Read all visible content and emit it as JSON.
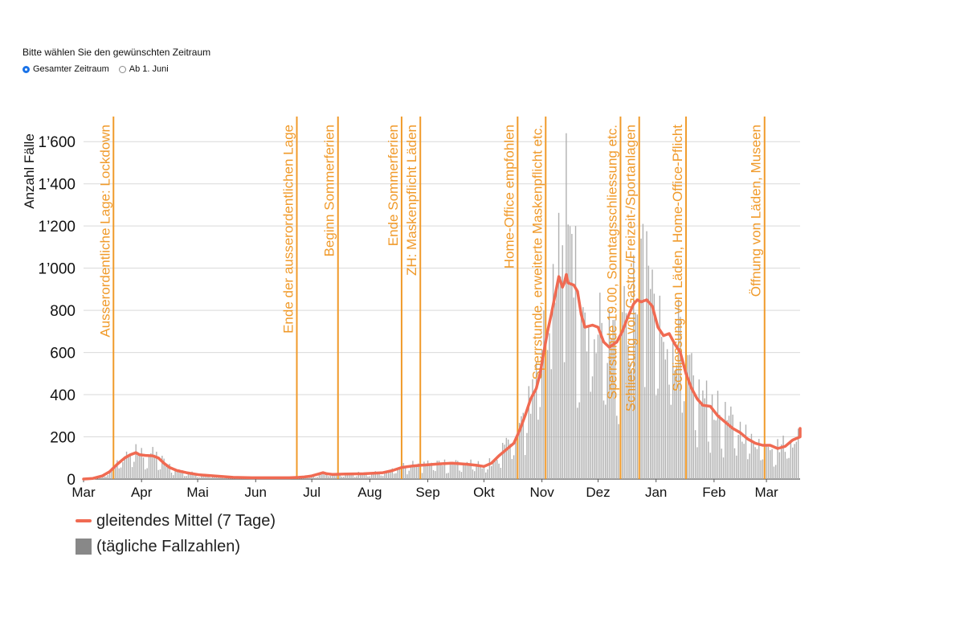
{
  "controls": {
    "prompt": "Bitte wählen Sie den gewünschten Zeitraum",
    "options": [
      {
        "label": "Gesamter Zeitraum",
        "checked": true
      },
      {
        "label": "Ab 1. Juni",
        "checked": false
      }
    ]
  },
  "legend": {
    "line_label": "gleitendes Mittel (7 Tage)",
    "bar_label": "(tägliche Fallzahlen)"
  },
  "colors": {
    "line": "#f06a52",
    "bars": "#b0b0b0",
    "events": "#f09a2a",
    "grid": "#d9d9d9",
    "radio_selected": "#1a73e8"
  },
  "chart_data": {
    "type": "bar",
    "title": "",
    "xlabel": "",
    "ylabel": "Anzahl Fälle",
    "ylim": [
      0,
      1700
    ],
    "yticks": [
      0,
      200,
      400,
      600,
      800,
      1000,
      1200,
      1400,
      1600
    ],
    "ytick_labels": [
      "0",
      "200",
      "400",
      "600",
      "800",
      "1’000",
      "1’200",
      "1’400",
      "1’600"
    ],
    "xticks": [
      {
        "label": "Mar",
        "day": 0
      },
      {
        "label": "Apr",
        "day": 31
      },
      {
        "label": "Mai",
        "day": 61
      },
      {
        "label": "Jun",
        "day": 92
      },
      {
        "label": "Jul",
        "day": 122
      },
      {
        "label": "Aug",
        "day": 153
      },
      {
        "label": "Sep",
        "day": 184
      },
      {
        "label": "Okt",
        "day": 214
      },
      {
        "label": "Nov",
        "day": 245
      },
      {
        "label": "Dez",
        "day": 275
      },
      {
        "label": "Jan",
        "day": 306
      },
      {
        "label": "Feb",
        "day": 337
      },
      {
        "label": "Mar",
        "day": 365
      }
    ],
    "x_days": 383,
    "grid": true,
    "legend_position": "bottom-left",
    "moving_average_points": [
      [
        0,
        0
      ],
      [
        5,
        3
      ],
      [
        10,
        15
      ],
      [
        14,
        35
      ],
      [
        18,
        70
      ],
      [
        22,
        100
      ],
      [
        25,
        115
      ],
      [
        28,
        125
      ],
      [
        30,
        115
      ],
      [
        33,
        112
      ],
      [
        37,
        110
      ],
      [
        40,
        100
      ],
      [
        43,
        75
      ],
      [
        46,
        55
      ],
      [
        50,
        40
      ],
      [
        55,
        30
      ],
      [
        62,
        20
      ],
      [
        70,
        15
      ],
      [
        80,
        8
      ],
      [
        90,
        6
      ],
      [
        100,
        6
      ],
      [
        110,
        6
      ],
      [
        115,
        8
      ],
      [
        118,
        10
      ],
      [
        122,
        15
      ],
      [
        126,
        25
      ],
      [
        128,
        30
      ],
      [
        130,
        25
      ],
      [
        133,
        22
      ],
      [
        140,
        24
      ],
      [
        150,
        25
      ],
      [
        160,
        30
      ],
      [
        165,
        40
      ],
      [
        170,
        55
      ],
      [
        176,
        62
      ],
      [
        180,
        65
      ],
      [
        184,
        68
      ],
      [
        190,
        72
      ],
      [
        197,
        75
      ],
      [
        205,
        70
      ],
      [
        210,
        65
      ],
      [
        214,
        60
      ],
      [
        218,
        75
      ],
      [
        222,
        110
      ],
      [
        226,
        140
      ],
      [
        230,
        170
      ],
      [
        233,
        230
      ],
      [
        236,
        300
      ],
      [
        239,
        380
      ],
      [
        242,
        430
      ],
      [
        244,
        500
      ],
      [
        246,
        600
      ],
      [
        248,
        700
      ],
      [
        250,
        780
      ],
      [
        252,
        870
      ],
      [
        254,
        960
      ],
      [
        256,
        910
      ],
      [
        257,
        930
      ],
      [
        258,
        970
      ],
      [
        259,
        930
      ],
      [
        262,
        920
      ],
      [
        264,
        890
      ],
      [
        266,
        780
      ],
      [
        268,
        720
      ],
      [
        272,
        730
      ],
      [
        275,
        720
      ],
      [
        278,
        650
      ],
      [
        281,
        625
      ],
      [
        285,
        650
      ],
      [
        288,
        700
      ],
      [
        291,
        770
      ],
      [
        294,
        830
      ],
      [
        296,
        850
      ],
      [
        298,
        840
      ],
      [
        301,
        850
      ],
      [
        304,
        820
      ],
      [
        307,
        720
      ],
      [
        310,
        680
      ],
      [
        313,
        690
      ],
      [
        316,
        640
      ],
      [
        319,
        600
      ],
      [
        322,
        500
      ],
      [
        325,
        430
      ],
      [
        328,
        380
      ],
      [
        331,
        350
      ],
      [
        335,
        345
      ],
      [
        339,
        300
      ],
      [
        343,
        270
      ],
      [
        347,
        240
      ],
      [
        351,
        220
      ],
      [
        355,
        190
      ],
      [
        359,
        170
      ],
      [
        363,
        160
      ],
      [
        367,
        160
      ],
      [
        371,
        145
      ],
      [
        375,
        155
      ],
      [
        379,
        185
      ],
      [
        383,
        200
      ],
      [
        387,
        225
      ],
      [
        390,
        240
      ]
    ],
    "events": [
      {
        "day": 16,
        "label": "Ausserordentliche Lage: Lockdown"
      },
      {
        "day": 114,
        "label": "Ende der ausserordentlichen Lage"
      },
      {
        "day": 136,
        "label": "Beginn Sommerferien"
      },
      {
        "day": 170,
        "label": "Ende Sommerferien"
      },
      {
        "day": 180,
        "label": "ZH: Maskenpflicht Läden"
      },
      {
        "day": 232,
        "label": "Home-Office empfohlen"
      },
      {
        "day": 247,
        "label": "Sperrstunde, erweiterte Maskenpflicht etc."
      },
      {
        "day": 287,
        "label": "Sperrstunde 19.00, Sonntagsschliessung etc."
      },
      {
        "day": 297,
        "label": "Schliessung von Gastro-/Freizeit-/Sportanlagen"
      },
      {
        "day": 322,
        "label": "Schliessung von Läden, Home-Office-Pflicht"
      },
      {
        "day": 364,
        "label": "Öffnung von Läden, Museen"
      }
    ]
  }
}
